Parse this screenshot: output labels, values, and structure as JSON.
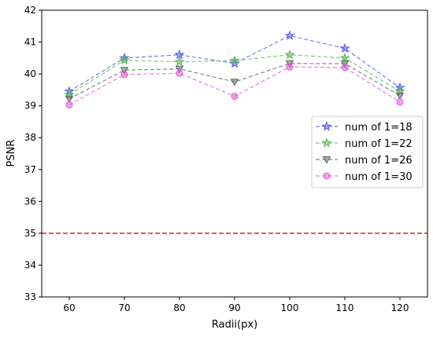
{
  "chart_data": {
    "type": "line",
    "title": "",
    "xlabel": "Radii(px)",
    "ylabel": "PSNR",
    "x": [
      60,
      70,
      80,
      90,
      100,
      110,
      120
    ],
    "xticks": [
      "60",
      "70",
      "80",
      "90",
      "100",
      "110",
      "120"
    ],
    "xlim": [
      55,
      125
    ],
    "ylim": [
      33,
      42
    ],
    "yticks": [
      "33",
      "34",
      "35",
      "36",
      "37",
      "38",
      "39",
      "40",
      "41",
      "42"
    ],
    "grid": false,
    "legend_position": "center-right",
    "reference_line": {
      "y": 35,
      "color": "#e8302a",
      "style": "dashed"
    },
    "series": [
      {
        "name": "num of 1=18",
        "color": "#5b5bf0",
        "marker": "star",
        "values": [
          39.45,
          40.5,
          40.6,
          40.33,
          41.2,
          40.8,
          39.57
        ]
      },
      {
        "name": "num of 1=22",
        "color": "#5cb85c",
        "marker": "star",
        "values": [
          39.35,
          40.43,
          40.38,
          40.42,
          40.6,
          40.5,
          39.45
        ]
      },
      {
        "name": "num of 1=26",
        "color": "#666666",
        "marker": "triangle-down",
        "values": [
          39.22,
          40.12,
          40.16,
          39.75,
          40.33,
          40.32,
          39.32
        ]
      },
      {
        "name": "num of 1=30",
        "color": "#e05be0",
        "marker": "circle",
        "values": [
          39.03,
          39.98,
          40.02,
          39.3,
          40.22,
          40.2,
          39.12
        ]
      }
    ]
  }
}
